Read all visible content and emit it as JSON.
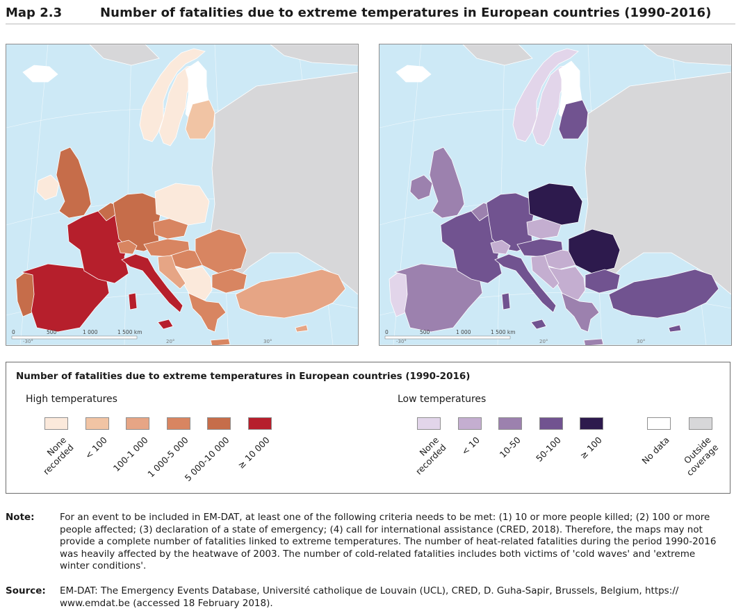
{
  "header": {
    "map_number": "Map 2.3",
    "title": "Number of fatalities due to extreme temperatures in European countries (1990-2016)"
  },
  "maps": {
    "scale_labels": [
      "0",
      "500",
      "1 000",
      "1 500 km"
    ],
    "graticule_labels": [
      "-30°",
      "20°",
      "30°"
    ],
    "high": {
      "countries": {
        "portugal": "5 000-10 000",
        "spain": "≥ 10 000",
        "france": "≥ 10 000",
        "italy": "≥ 10 000",
        "uk": "5 000-10 000",
        "ireland": "None recorded",
        "germany": "5 000-10 000",
        "benelux": "5 000-10 000",
        "switzerland": "1 000-5 000",
        "austria": "1 000-5 000",
        "czechia": "1 000-5 000",
        "poland": "None recorded",
        "hungary": "1 000-5 000",
        "romania": "1 000-5 000",
        "bulgaria": "1 000-5 000",
        "greece": "1 000-5 000",
        "turkey": "100-1 000",
        "balkans": "None recorded",
        "croatia": "100-1 000",
        "baltics": "< 100",
        "norway": "None recorded",
        "sweden": "None recorded",
        "finland": "No data",
        "iceland": "No data"
      }
    },
    "low": {
      "countries": {
        "portugal": "None recorded",
        "spain": "10-50",
        "france": "50-100",
        "italy": "50-100",
        "uk": "10-50",
        "ireland": "10-50",
        "germany": "50-100",
        "benelux": "10-50",
        "switzerland": "< 10",
        "austria": "50-100",
        "czechia": "< 10",
        "poland": "≥ 100",
        "hungary": "< 10",
        "romania": "≥ 100",
        "bulgaria": "50-100",
        "greece": "10-50",
        "turkey": "50-100",
        "balkans": "< 10",
        "croatia": "< 10",
        "baltics": "50-100",
        "norway": "None recorded",
        "sweden": "None recorded",
        "finland": "No data",
        "iceland": "No data"
      }
    }
  },
  "legend": {
    "title": "Number of fatalities due to extreme temperatures in European countries (1990-2016)",
    "high_label": "High temperatures",
    "low_label": "Low temperatures",
    "high_classes": [
      {
        "label": "None\nrecorded",
        "color": "#fbe9db"
      },
      {
        "label": "< 100",
        "color": "#f1c4a4"
      },
      {
        "label": "100-1 000",
        "color": "#e6a585"
      },
      {
        "label": "1 000-5 000",
        "color": "#d88561"
      },
      {
        "label": "5 000-10 000",
        "color": "#c66d4a"
      },
      {
        "label": "≥ 10 000",
        "color": "#b61f2c"
      }
    ],
    "low_classes": [
      {
        "label": "None\nrecorded",
        "color": "#e2d5ea"
      },
      {
        "label": "< 10",
        "color": "#c4aed0"
      },
      {
        "label": "10-50",
        "color": "#9c81ae"
      },
      {
        "label": "50-100",
        "color": "#715390"
      },
      {
        "label": "≥ 100",
        "color": "#2d1a4d"
      }
    ],
    "other_classes": [
      {
        "label": "No data",
        "color": "#ffffff"
      },
      {
        "label": "Outside\ncoverage",
        "color": "#d7d7d9"
      }
    ]
  },
  "colors": {
    "sea": "#cde9f6",
    "outside": "#d7d7d9",
    "border": "#ffffff"
  },
  "note": {
    "label": "Note:",
    "text": "For an event to be included in EM-DAT, at least one of the following criteria needs to be met: (1) 10 or more people killed; (2) 100 or more people affected; (3) declaration of a state of emergency; (4) call for international assistance (CRED, 2018). Therefore, the maps may not provide a complete number of fatalities linked to extreme temperatures. The number of heat-related fatalities during the period 1990-2016 was heavily affected by the heatwave of 2003. The number of cold-related fatalities includes both victims of 'cold waves' and 'extreme winter conditions'."
  },
  "source": {
    "label": "Source:",
    "text": "EM-DAT: The Emergency Events Database, Université catholique de Louvain (UCL), CRED, D. Guha-Sapir, Brussels, Belgium, https:// www.emdat.be (accessed 18 February 2018)."
  }
}
